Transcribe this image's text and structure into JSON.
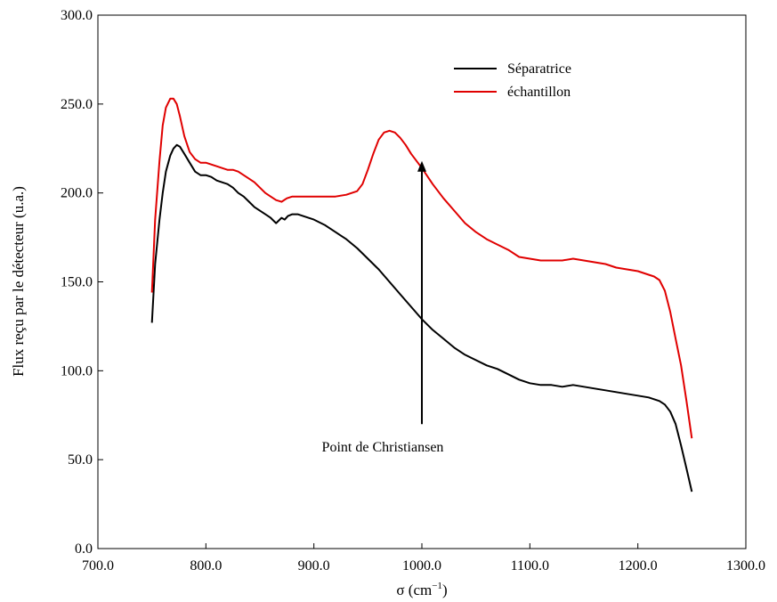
{
  "chart_data": {
    "type": "line",
    "title": "",
    "xlabel": "σ (cm",
    "xlabel_sup": "−1",
    "xlabel_close": ")",
    "ylabel": "Flux reçu par le détecteur (u.a.)",
    "xlim": [
      700,
      1300
    ],
    "ylim": [
      0,
      300
    ],
    "x_ticks": [
      700,
      800,
      900,
      1000,
      1100,
      1200,
      1300
    ],
    "x_tick_labels": [
      "700.0",
      "800.0",
      "900.0",
      "1000.0",
      "1100.0",
      "1200.0",
      "1300.0"
    ],
    "y_ticks": [
      0,
      50,
      100,
      150,
      200,
      250,
      300
    ],
    "y_tick_labels": [
      "0.0",
      "50.0",
      "100.0",
      "150.0",
      "200.0",
      "250.0",
      "300.0"
    ],
    "grid": false,
    "legend_position": "top-right",
    "series": [
      {
        "name": "Séparatrice",
        "color": "#000000",
        "x": [
          750,
          753,
          757,
          760,
          763,
          767,
          770,
          773,
          776,
          780,
          785,
          790,
          795,
          800,
          805,
          810,
          815,
          820,
          825,
          830,
          835,
          840,
          845,
          850,
          855,
          860,
          865,
          870,
          873,
          876,
          880,
          885,
          890,
          895,
          900,
          910,
          920,
          930,
          940,
          950,
          960,
          970,
          980,
          990,
          1000,
          1010,
          1020,
          1030,
          1040,
          1050,
          1060,
          1070,
          1080,
          1090,
          1100,
          1110,
          1120,
          1130,
          1140,
          1150,
          1160,
          1170,
          1180,
          1190,
          1200,
          1210,
          1220,
          1225,
          1230,
          1235,
          1240,
          1245,
          1250
        ],
        "y": [
          127,
          160,
          185,
          200,
          212,
          221,
          225,
          227,
          226,
          222,
          217,
          212,
          210,
          210,
          209,
          207,
          206,
          205,
          203,
          200,
          198,
          195,
          192,
          190,
          188,
          186,
          183,
          186,
          185,
          187,
          188,
          188,
          187,
          186,
          185,
          182,
          178,
          174,
          169,
          163,
          157,
          150,
          143,
          136,
          129,
          123,
          118,
          113,
          109,
          106,
          103,
          101,
          98,
          95,
          93,
          92,
          92,
          91,
          92,
          91,
          90,
          89,
          88,
          87,
          86,
          85,
          83,
          81,
          77,
          70,
          58,
          45,
          32
        ]
      },
      {
        "name": "échantillon",
        "color": "#e00000",
        "x": [
          750,
          753,
          757,
          760,
          763,
          767,
          770,
          773,
          776,
          780,
          785,
          790,
          795,
          800,
          805,
          810,
          815,
          820,
          825,
          830,
          835,
          840,
          845,
          850,
          855,
          860,
          865,
          870,
          875,
          880,
          890,
          900,
          910,
          920,
          930,
          940,
          945,
          950,
          955,
          960,
          965,
          970,
          975,
          980,
          985,
          990,
          1000,
          1010,
          1020,
          1030,
          1040,
          1050,
          1060,
          1070,
          1080,
          1090,
          1100,
          1110,
          1120,
          1130,
          1140,
          1150,
          1160,
          1170,
          1180,
          1190,
          1200,
          1210,
          1215,
          1220,
          1225,
          1230,
          1235,
          1240,
          1245,
          1250
        ],
        "y": [
          144,
          185,
          218,
          238,
          248,
          253,
          253,
          250,
          243,
          232,
          223,
          219,
          217,
          217,
          216,
          215,
          214,
          213,
          213,
          212,
          210,
          208,
          206,
          203,
          200,
          198,
          196,
          195,
          197,
          198,
          198,
          198,
          198,
          198,
          199,
          201,
          205,
          213,
          222,
          230,
          234,
          235,
          234,
          231,
          227,
          222,
          214,
          205,
          197,
          190,
          183,
          178,
          174,
          171,
          168,
          164,
          163,
          162,
          162,
          162,
          163,
          162,
          161,
          160,
          158,
          157,
          156,
          154,
          153,
          151,
          145,
          133,
          118,
          103,
          83,
          62
        ]
      }
    ],
    "annotations": [
      {
        "text": "Point de Christiansen",
        "arrow_x": 1000,
        "arrow_y_from": 70,
        "arrow_y_to": 218
      }
    ]
  }
}
